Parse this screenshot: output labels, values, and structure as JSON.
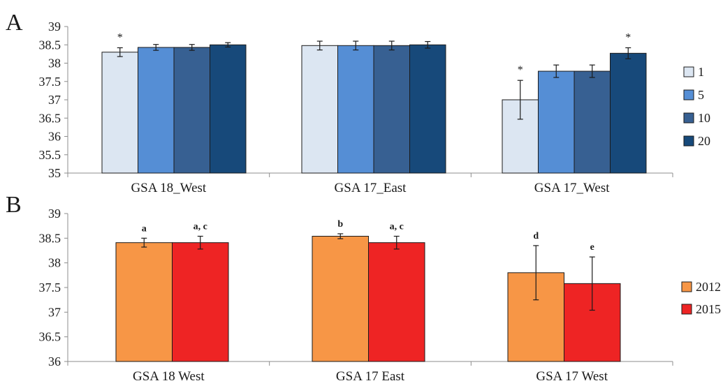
{
  "chart_data": [
    {
      "panel_label": "A",
      "type": "bar",
      "categories": [
        "GSA 18_West",
        "GSA 17_East",
        "GSA 17_West"
      ],
      "ylim": [
        35,
        39
      ],
      "yticks": [
        35,
        35.5,
        36,
        36.5,
        37,
        37.5,
        38,
        38.5,
        39
      ],
      "series": [
        {
          "name": "1",
          "color": "#dce6f2",
          "values": [
            38.3,
            38.48,
            37.0
          ],
          "errors": [
            0.12,
            0.12,
            0.53
          ],
          "annotations": [
            "*",
            "",
            "*"
          ]
        },
        {
          "name": "5",
          "color": "#558ed5",
          "values": [
            38.43,
            38.48,
            37.78
          ],
          "errors": [
            0.08,
            0.12,
            0.17
          ],
          "annotations": [
            "",
            "",
            ""
          ]
        },
        {
          "name": "10",
          "color": "#376092",
          "values": [
            38.43,
            38.48,
            37.78
          ],
          "errors": [
            0.08,
            0.12,
            0.17
          ],
          "annotations": [
            "",
            "",
            ""
          ]
        },
        {
          "name": "20",
          "color": "#17497a",
          "values": [
            38.5,
            38.5,
            38.27
          ],
          "errors": [
            0.06,
            0.09,
            0.15
          ],
          "annotations": [
            "",
            "",
            "*"
          ]
        }
      ]
    },
    {
      "panel_label": "B",
      "type": "bar",
      "categories": [
        "GSA 18  West",
        "GSA 17  East",
        "GSA 17  West"
      ],
      "ylim": [
        36,
        39
      ],
      "yticks": [
        36,
        36.5,
        37,
        37.5,
        38,
        38.5,
        39
      ],
      "series": [
        {
          "name": "2012",
          "color": "#f79646",
          "values": [
            38.41,
            38.54,
            37.8
          ],
          "errors": [
            0.09,
            0.05,
            0.55
          ],
          "annotations": [
            "a",
            "b",
            "d"
          ]
        },
        {
          "name": "2015",
          "color": "#ee2424",
          "values": [
            38.41,
            38.41,
            37.58
          ],
          "errors": [
            0.13,
            0.13,
            0.54
          ],
          "annotations": [
            "a, c",
            "a, c",
            "e"
          ]
        }
      ]
    }
  ]
}
